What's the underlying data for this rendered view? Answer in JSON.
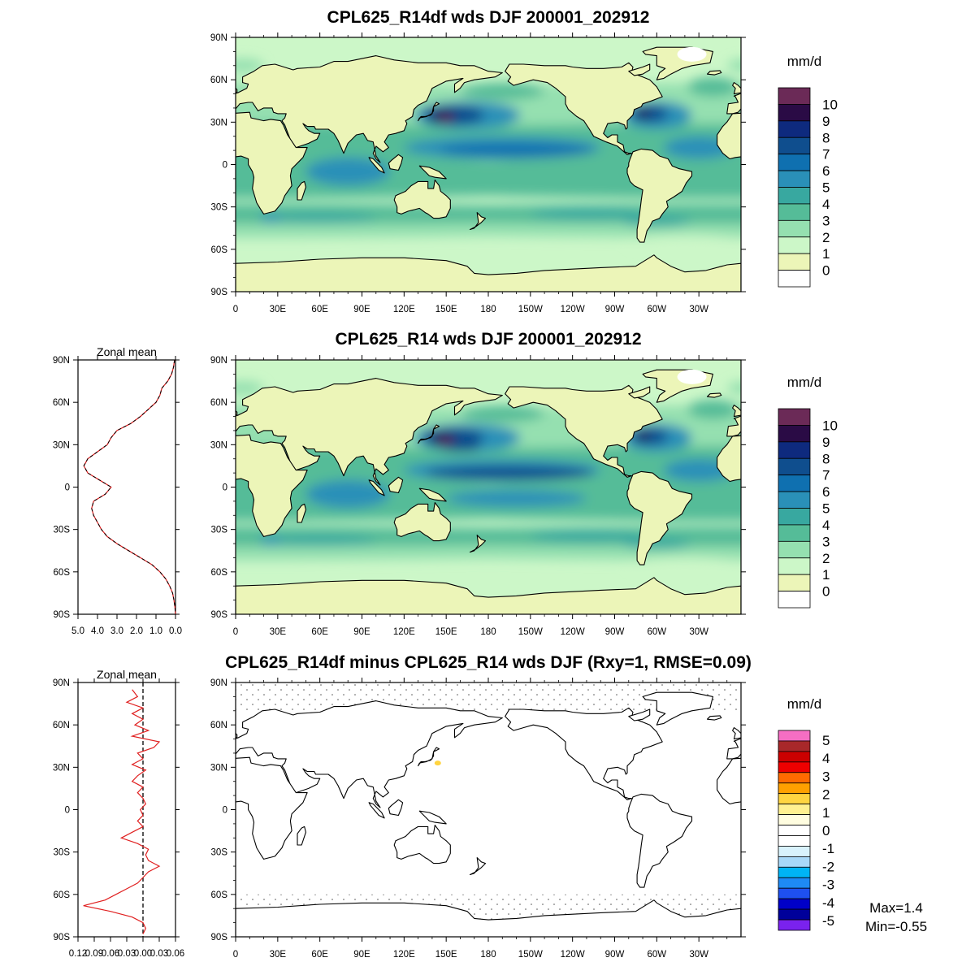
{
  "panels": [
    {
      "title": "CPL625_R14df wds DJF 200001_202912",
      "unit": "mm/d",
      "variant": "a"
    },
    {
      "title": "CPL625_R14 wds DJF 200001_202912",
      "unit": "mm/d",
      "variant": "b"
    },
    {
      "title": "CPL625_R14df minus CPL625_R14 wds DJF (Rxy=1, RMSE=0.09)",
      "unit": "mm/d",
      "variant": "diff"
    }
  ],
  "lat_ticks": [
    "90N",
    "60N",
    "30N",
    "0",
    "30S",
    "60S",
    "90S"
  ],
  "lon_ticks": [
    "0",
    "30E",
    "60E",
    "90E",
    "120E",
    "150E",
    "180",
    "150W",
    "120W",
    "90W",
    "60W",
    "30W"
  ],
  "colorbar_main": {
    "labels": [
      "10",
      "9",
      "8",
      "7",
      "6",
      "5",
      "4",
      "3",
      "2",
      "1",
      "0"
    ],
    "colors": [
      "#6b2a57",
      "#2a0b45",
      "#0e2a7e",
      "#0f4e8e",
      "#0f70b0",
      "#2a90b8",
      "#38a8a0",
      "#55bc98",
      "#95e0b0",
      "#ccf7c8",
      "#ecf5b8",
      "#ffffff"
    ]
  },
  "colorbar_diff": {
    "labels": [
      "5",
      "4",
      "3",
      "2",
      "1",
      "0",
      "-1",
      "-2",
      "-3",
      "-4",
      "-5"
    ],
    "colors": [
      "#f56ec3",
      "#a8282a",
      "#cc0000",
      "#ee0000",
      "#ff6a00",
      "#ffa000",
      "#ffd440",
      "#fff090",
      "#fffde0",
      "#ffffff",
      "#ffffff",
      "#d8f2fc",
      "#a8d8f8",
      "#00b4f5",
      "#1e8af5",
      "#1e50f0",
      "#0000c8",
      "#00009a",
      "#7a22ee"
    ]
  },
  "zonal_mean_1": {
    "title": "Zonal mean",
    "x_ticks": [
      "5.0",
      "4.0",
      "3.0",
      "2.0",
      "1.0",
      "0.0"
    ],
    "lat_ticks": [
      "90N",
      "60N",
      "30N",
      "0",
      "30S",
      "60S",
      "90S"
    ]
  },
  "zonal_mean_2": {
    "title": "Zonal mean",
    "x_ticks": [
      "0.12",
      "0.09",
      "0.06",
      "0.03",
      "0.00",
      "0.03",
      "0.06"
    ],
    "lat_ticks": [
      "90N",
      "60N",
      "30N",
      "0",
      "30S",
      "60S",
      "90S"
    ]
  },
  "stats": {
    "max": "Max=1.4",
    "min": "Min=-0.55"
  },
  "chart_data": [
    {
      "type": "line",
      "title": "Zonal mean",
      "xlabel": "",
      "ylabel": "",
      "xlim": [
        5.0,
        0.0
      ],
      "ylim": [
        -90,
        90
      ],
      "series": [
        {
          "lat": [
            90,
            85,
            80,
            75,
            70,
            65,
            60,
            55,
            50,
            45,
            40,
            35,
            30,
            25,
            20,
            15,
            10,
            5,
            0,
            -5,
            -10,
            -15,
            -20,
            -25,
            -30,
            -35,
            -40,
            -45,
            -50,
            -55,
            -60,
            -65,
            -70,
            -75,
            -80,
            -85,
            -90
          ],
          "values": [
            0.05,
            0.1,
            0.2,
            0.4,
            0.7,
            0.8,
            1.0,
            1.4,
            1.8,
            2.3,
            3.0,
            3.3,
            3.5,
            4.0,
            4.5,
            4.7,
            4.5,
            3.9,
            3.3,
            3.6,
            4.2,
            4.3,
            4.2,
            4.0,
            3.8,
            3.5,
            3.0,
            2.4,
            1.8,
            1.2,
            0.8,
            0.5,
            0.3,
            0.15,
            0.08,
            0.03,
            0.0
          ]
        }
      ]
    },
    {
      "type": "line",
      "title": "Zonal mean",
      "xlabel": "",
      "ylabel": "",
      "xlim": [
        0.12,
        -0.06
      ],
      "ylim": [
        -90,
        90
      ],
      "series": [
        {
          "lat": [
            85,
            80,
            76,
            72,
            68,
            64,
            60,
            56,
            52,
            48,
            44,
            40,
            36,
            32,
            28,
            24,
            20,
            16,
            12,
            8,
            4,
            0,
            -4,
            -8,
            -12,
            -16,
            -20,
            -24,
            -28,
            -32,
            -36,
            -40,
            -44,
            -48,
            -52,
            -56,
            -60,
            -64,
            -68,
            -72,
            -76,
            -80,
            -84,
            -88
          ],
          "values": [
            0.02,
            0.01,
            0.03,
            0.0,
            0.02,
            0.0,
            0.015,
            -0.01,
            0.02,
            -0.03,
            -0.02,
            0.01,
            0.0,
            0.02,
            -0.005,
            0.01,
            0.02,
            0.0,
            0.01,
            0.0,
            -0.005,
            0.005,
            0.0,
            0.01,
            0.0,
            0.02,
            0.04,
            0.01,
            -0.01,
            -0.005,
            -0.01,
            -0.03,
            -0.01,
            0.0,
            0.01,
            0.03,
            0.05,
            0.07,
            0.11,
            0.06,
            0.02,
            0.0,
            -0.005,
            0.0
          ]
        }
      ]
    }
  ]
}
